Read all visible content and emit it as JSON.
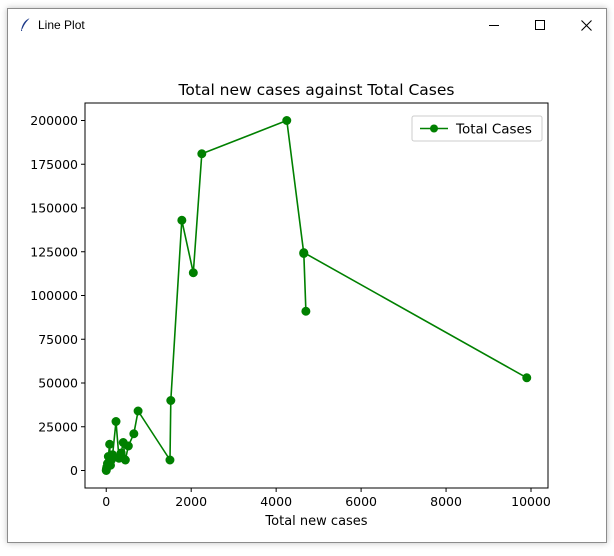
{
  "window": {
    "title": "Line Plot",
    "icon": "feather-icon",
    "controls": [
      "minimize-icon",
      "maximize-icon",
      "close-icon"
    ]
  },
  "chart_data": {
    "type": "line",
    "title": "Total  new cases against Total Cases",
    "xlabel": "Total  new cases",
    "ylabel": "",
    "xlim": [
      -500,
      10400
    ],
    "ylim": [
      -10000,
      210000
    ],
    "xticks": [
      0,
      2000,
      4000,
      6000,
      8000,
      10000
    ],
    "yticks": [
      0,
      25000,
      50000,
      75000,
      100000,
      125000,
      150000,
      175000,
      200000
    ],
    "grid": false,
    "legend_position": "upper right",
    "series": [
      {
        "name": "Total Cases",
        "color": "#008000",
        "marker": "circle",
        "points": [
          [
            0,
            0
          ],
          [
            5,
            1000
          ],
          [
            15,
            2000
          ],
          [
            30,
            4000
          ],
          [
            50,
            8000
          ],
          [
            80,
            15000
          ],
          [
            100,
            3000
          ],
          [
            120,
            6000
          ],
          [
            150,
            9000
          ],
          [
            230,
            28000
          ],
          [
            300,
            7000
          ],
          [
            350,
            10000
          ],
          [
            400,
            16000
          ],
          [
            450,
            6000
          ],
          [
            520,
            14000
          ],
          [
            650,
            21000
          ],
          [
            750,
            34000
          ],
          [
            1500,
            6000
          ],
          [
            1520,
            40000
          ],
          [
            1780,
            143000
          ],
          [
            2050,
            113000
          ],
          [
            2250,
            181000
          ],
          [
            4250,
            200000
          ],
          [
            4650,
            124000
          ],
          [
            4700,
            91000
          ],
          [
            4650,
            124500
          ],
          [
            9900,
            53000
          ]
        ]
      }
    ]
  }
}
